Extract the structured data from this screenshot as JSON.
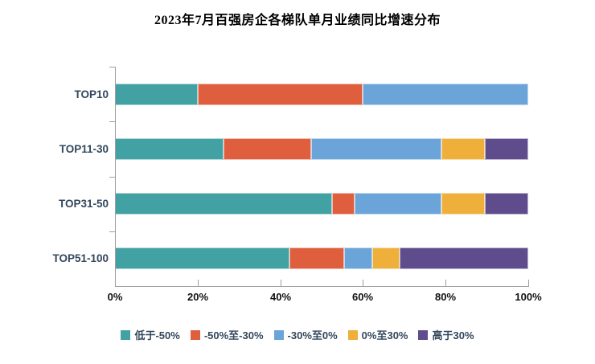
{
  "chart_data": {
    "type": "bar",
    "variant": "horizontal-stacked",
    "title": "2023年7月百强房企各梯队单月业绩同比增速分布",
    "categories": [
      "TOP10",
      "TOP11-30",
      "TOP31-50",
      "TOP51-100"
    ],
    "series": [
      {
        "name": "低于-50%",
        "color": "#42a1a3",
        "values": [
          20.0,
          26.3,
          52.6,
          42.2
        ]
      },
      {
        "name": "-50%至-30%",
        "color": "#de5e3d",
        "values": [
          40.0,
          21.1,
          5.3,
          13.3
        ]
      },
      {
        "name": "-30%至0%",
        "color": "#6aa4d8",
        "values": [
          40.0,
          31.6,
          21.1,
          6.7
        ]
      },
      {
        "name": "0%至30%",
        "color": "#efaf3b",
        "values": [
          0.0,
          10.5,
          10.5,
          6.7
        ]
      },
      {
        "name": "高于30%",
        "color": "#5f4c8c",
        "values": [
          0.0,
          10.5,
          10.5,
          31.1
        ]
      }
    ],
    "x_ticks": [
      "0%",
      "20%",
      "40%",
      "60%",
      "80%",
      "100%"
    ],
    "xlim": [
      0,
      100
    ],
    "unit": "percent",
    "grid": false,
    "legend_position": "bottom",
    "axis_color": "#9e9e9e"
  }
}
